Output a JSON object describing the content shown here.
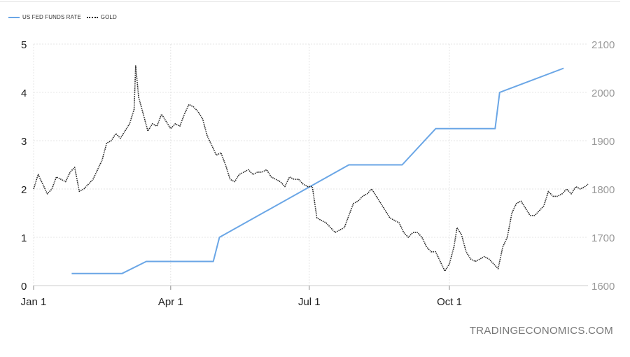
{
  "legend": [
    {
      "label": "US FED FUNDS RATE",
      "color": "#6aa6e6",
      "style": "solid"
    },
    {
      "label": "GOLD",
      "color": "#222222",
      "style": "dotted"
    }
  ],
  "watermark": "TRADINGECONOMICS.COM",
  "chart_data": {
    "type": "line",
    "grid": true,
    "legend_position": "top-left",
    "x_ticks": [
      {
        "label": "Jan 1",
        "day": 0
      },
      {
        "label": "Apr 1",
        "day": 90
      },
      {
        "label": "Jul 1",
        "day": 181
      },
      {
        "label": "Oct 1",
        "day": 273
      }
    ],
    "x_range": [
      0,
      364
    ],
    "left_axis": {
      "range": [
        0,
        5
      ],
      "ticks": [
        0,
        1,
        2,
        3,
        4,
        5
      ]
    },
    "right_axis": {
      "range": [
        1600,
        2100
      ],
      "ticks": [
        1600,
        1700,
        1800,
        1900,
        2000,
        2100
      ]
    },
    "series": [
      {
        "name": "US FED FUNDS RATE",
        "axis": "left",
        "color": "#6aa6e6",
        "points": [
          [
            25,
            0.25
          ],
          [
            58,
            0.25
          ],
          [
            74,
            0.5
          ],
          [
            118,
            0.5
          ],
          [
            122,
            1.0
          ],
          [
            207,
            2.5
          ],
          [
            242,
            2.5
          ],
          [
            264,
            3.25
          ],
          [
            303,
            3.25
          ],
          [
            306,
            4.0
          ],
          [
            348,
            4.5
          ]
        ]
      },
      {
        "name": "GOLD",
        "axis": "right",
        "color": "#222222",
        "points": [
          [
            0,
            1800
          ],
          [
            3,
            1830
          ],
          [
            6,
            1810
          ],
          [
            9,
            1790
          ],
          [
            12,
            1800
          ],
          [
            15,
            1825
          ],
          [
            18,
            1820
          ],
          [
            21,
            1815
          ],
          [
            24,
            1835
          ],
          [
            27,
            1845
          ],
          [
            30,
            1795
          ],
          [
            33,
            1800
          ],
          [
            36,
            1810
          ],
          [
            39,
            1820
          ],
          [
            42,
            1840
          ],
          [
            45,
            1860
          ],
          [
            48,
            1895
          ],
          [
            51,
            1900
          ],
          [
            54,
            1915
          ],
          [
            57,
            1905
          ],
          [
            60,
            1920
          ],
          [
            63,
            1935
          ],
          [
            66,
            1965
          ],
          [
            67,
            2055
          ],
          [
            69,
            1990
          ],
          [
            72,
            1955
          ],
          [
            75,
            1920
          ],
          [
            78,
            1935
          ],
          [
            81,
            1930
          ],
          [
            84,
            1955
          ],
          [
            87,
            1940
          ],
          [
            90,
            1925
          ],
          [
            93,
            1935
          ],
          [
            96,
            1930
          ],
          [
            99,
            1955
          ],
          [
            102,
            1975
          ],
          [
            105,
            1970
          ],
          [
            108,
            1960
          ],
          [
            111,
            1945
          ],
          [
            114,
            1910
          ],
          [
            117,
            1890
          ],
          [
            120,
            1870
          ],
          [
            123,
            1875
          ],
          [
            126,
            1850
          ],
          [
            129,
            1820
          ],
          [
            132,
            1815
          ],
          [
            135,
            1830
          ],
          [
            138,
            1835
          ],
          [
            141,
            1840
          ],
          [
            144,
            1830
          ],
          [
            147,
            1835
          ],
          [
            150,
            1835
          ],
          [
            153,
            1840
          ],
          [
            156,
            1825
          ],
          [
            159,
            1820
          ],
          [
            162,
            1815
          ],
          [
            165,
            1805
          ],
          [
            168,
            1825
          ],
          [
            171,
            1820
          ],
          [
            174,
            1820
          ],
          [
            177,
            1810
          ],
          [
            180,
            1805
          ],
          [
            183,
            1805
          ],
          [
            186,
            1740
          ],
          [
            189,
            1735
          ],
          [
            192,
            1730
          ],
          [
            195,
            1720
          ],
          [
            198,
            1710
          ],
          [
            201,
            1715
          ],
          [
            204,
            1720
          ],
          [
            207,
            1745
          ],
          [
            210,
            1770
          ],
          [
            213,
            1775
          ],
          [
            216,
            1785
          ],
          [
            219,
            1790
          ],
          [
            222,
            1800
          ],
          [
            225,
            1785
          ],
          [
            228,
            1770
          ],
          [
            231,
            1755
          ],
          [
            234,
            1740
          ],
          [
            237,
            1735
          ],
          [
            240,
            1730
          ],
          [
            243,
            1710
          ],
          [
            246,
            1700
          ],
          [
            249,
            1710
          ],
          [
            252,
            1710
          ],
          [
            255,
            1700
          ],
          [
            258,
            1680
          ],
          [
            261,
            1670
          ],
          [
            264,
            1670
          ],
          [
            267,
            1650
          ],
          [
            270,
            1630
          ],
          [
            273,
            1645
          ],
          [
            276,
            1680
          ],
          [
            278,
            1720
          ],
          [
            281,
            1705
          ],
          [
            284,
            1670
          ],
          [
            287,
            1655
          ],
          [
            290,
            1650
          ],
          [
            293,
            1655
          ],
          [
            296,
            1660
          ],
          [
            299,
            1655
          ],
          [
            302,
            1645
          ],
          [
            305,
            1635
          ],
          [
            308,
            1680
          ],
          [
            311,
            1700
          ],
          [
            314,
            1750
          ],
          [
            317,
            1770
          ],
          [
            320,
            1775
          ],
          [
            323,
            1760
          ],
          [
            326,
            1745
          ],
          [
            329,
            1745
          ],
          [
            332,
            1755
          ],
          [
            335,
            1765
          ],
          [
            338,
            1795
          ],
          [
            341,
            1785
          ],
          [
            344,
            1785
          ],
          [
            347,
            1790
          ],
          [
            350,
            1800
          ],
          [
            353,
            1790
          ],
          [
            356,
            1805
          ],
          [
            359,
            1800
          ],
          [
            362,
            1805
          ],
          [
            364,
            1810
          ]
        ]
      }
    ]
  }
}
